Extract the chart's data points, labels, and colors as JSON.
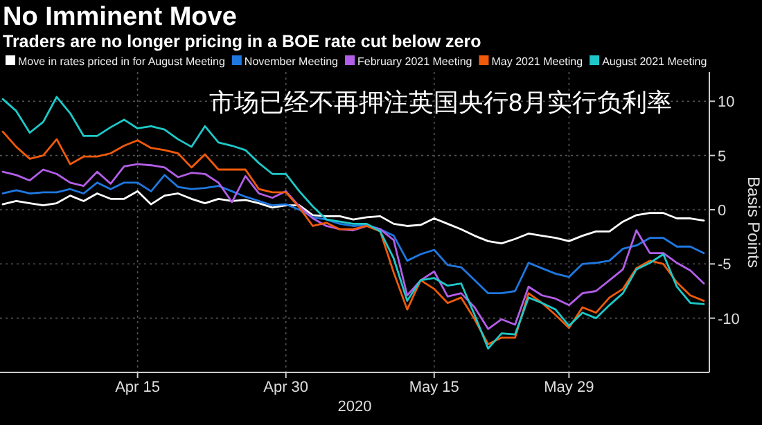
{
  "chart_data": {
    "type": "line",
    "title": "No Imminent Move",
    "subtitle": "Traders are no longer pricing in a BOE rate cut below zero",
    "xlabel": "2020",
    "ylabel": "Basis Points",
    "annotations": [
      "市场已经不再押注英国央行8月实行负利率"
    ],
    "categories": [
      null,
      null,
      null,
      null,
      null,
      null,
      null,
      null,
      null,
      null,
      "Apr 15",
      null,
      null,
      null,
      null,
      null,
      null,
      null,
      null,
      null,
      null,
      "Apr 30",
      null,
      null,
      null,
      null,
      null,
      null,
      null,
      null,
      null,
      null,
      "May 15",
      null,
      null,
      null,
      null,
      null,
      null,
      null,
      null,
      null,
      "May 29",
      null,
      null,
      null,
      null,
      null,
      null,
      null,
      null,
      null,
      null
    ],
    "ylim": [
      -15,
      12.7
    ],
    "yticks": [
      -10,
      -5,
      0,
      5,
      10
    ],
    "grid": true,
    "legend": "top",
    "series": [
      {
        "name": "Move in rates priced in for August Meeting",
        "color": "#ffffff",
        "values": [
          0.5,
          0.8,
          0.6,
          0.4,
          0.6,
          1.3,
          0.8,
          1.5,
          1.0,
          1.0,
          1.7,
          0.5,
          1.3,
          1.5,
          1.0,
          0.6,
          1.0,
          0.8,
          0.9,
          0.6,
          0.2,
          0.4,
          0.4,
          -0.5,
          -0.6,
          -0.6,
          -0.9,
          -0.7,
          -0.6,
          -1.3,
          -1.5,
          -1.4,
          -0.8,
          -1.3,
          -1.8,
          -2.4,
          -2.9,
          -3.1,
          -2.7,
          -2.2,
          -2.4,
          -2.6,
          -2.9,
          -2.4,
          -2.0,
          -2.0,
          -1.1,
          -0.5,
          -0.3,
          -0.3,
          -0.8,
          -0.8,
          -1.0
        ]
      },
      {
        "name": "November Meeting",
        "color": "#1f78e0",
        "values": [
          1.5,
          1.8,
          1.5,
          1.6,
          1.6,
          1.9,
          1.5,
          2.5,
          1.9,
          2.5,
          2.5,
          1.7,
          3.2,
          2.1,
          1.9,
          2.0,
          2.2,
          1.7,
          1.2,
          0.8,
          0.4,
          0.5,
          0.0,
          -0.7,
          -0.9,
          -1.3,
          -1.5,
          -1.4,
          -1.8,
          -2.4,
          -4.7,
          -4.1,
          -3.7,
          -5.1,
          -5.3,
          -6.5,
          -7.7,
          -7.7,
          -7.5,
          -4.9,
          -5.4,
          -5.9,
          -6.2,
          -5.0,
          -4.9,
          -4.7,
          -3.6,
          -3.3,
          -2.6,
          -2.6,
          -3.4,
          -3.4,
          -4.0
        ]
      },
      {
        "name": "February 2021 Meeting",
        "color": "#b35ee8",
        "values": [
          3.5,
          3.2,
          2.7,
          3.7,
          3.3,
          2.5,
          2.2,
          3.5,
          2.4,
          4.0,
          4.2,
          4.1,
          3.9,
          3.0,
          3.4,
          3.3,
          2.5,
          0.7,
          3.1,
          1.5,
          1.1,
          1.7,
          0.3,
          -0.8,
          -1.5,
          -1.8,
          -1.9,
          -1.5,
          -1.8,
          -2.8,
          -7.9,
          -6.5,
          -5.7,
          -8.0,
          -7.7,
          -9.0,
          -11.0,
          -10.1,
          -10.6,
          -7.1,
          -7.9,
          -8.2,
          -8.8,
          -7.7,
          -7.5,
          -6.5,
          -5.5,
          -1.9,
          -4.0,
          -4.0,
          -4.9,
          -5.6,
          -6.8
        ]
      },
      {
        "name": "May 2021 Meeting",
        "color": "#f05a0a",
        "values": [
          7.2,
          5.8,
          4.7,
          5.0,
          6.5,
          4.2,
          4.9,
          4.9,
          5.2,
          5.9,
          6.4,
          5.7,
          5.5,
          5.2,
          3.9,
          5.1,
          3.7,
          3.7,
          3.7,
          1.9,
          1.6,
          1.6,
          0.2,
          -1.5,
          -1.2,
          -1.8,
          -1.8,
          -1.5,
          -2.0,
          -5.8,
          -9.2,
          -6.5,
          -7.3,
          -8.6,
          -8.1,
          -10.1,
          -12.4,
          -11.8,
          -11.8,
          -7.7,
          -8.6,
          -9.7,
          -10.9,
          -9.0,
          -9.5,
          -8.1,
          -7.3,
          -5.4,
          -4.7,
          -5.0,
          -6.7,
          -7.9,
          -8.4
        ]
      },
      {
        "name": "August 2021 Meeting",
        "color": "#1ec8c8",
        "values": [
          10.2,
          9.1,
          7.1,
          8.1,
          10.4,
          8.9,
          6.8,
          6.8,
          7.6,
          8.3,
          7.5,
          7.7,
          7.4,
          6.5,
          5.8,
          7.7,
          6.2,
          5.9,
          5.5,
          4.3,
          3.3,
          3.3,
          1.7,
          0.3,
          -0.9,
          -1.1,
          -1.3,
          -1.3,
          -2.0,
          -4.5,
          -8.4,
          -6.5,
          -6.3,
          -7.0,
          -6.8,
          -9.7,
          -12.8,
          -11.4,
          -11.5,
          -8.1,
          -8.6,
          -9.2,
          -10.7,
          -9.5,
          -10.0,
          -8.8,
          -7.7,
          -5.5,
          -4.9,
          -4.1,
          -7.1,
          -8.6,
          -8.7
        ]
      }
    ]
  }
}
